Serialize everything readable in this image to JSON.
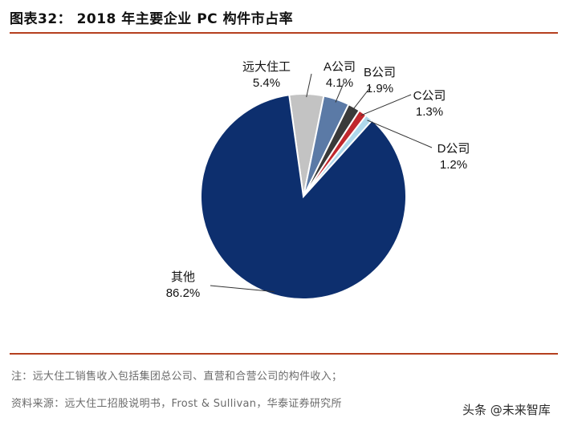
{
  "title": "图表32：  2018 年主要企业 PC 构件市占率",
  "chart_data": {
    "type": "pie",
    "title": "2018 年主要企业 PC 构件市占率",
    "slices": [
      {
        "label": "远大住工",
        "value_text": "5.4%",
        "value": 5.4,
        "color": "#c3c3c3"
      },
      {
        "label": "A公司",
        "value_text": "4.1%",
        "value": 4.1,
        "color": "#5b7aa6"
      },
      {
        "label": "B公司",
        "value_text": "1.9%",
        "value": 1.9,
        "color": "#3a3a3a"
      },
      {
        "label": "C公司",
        "value_text": "1.3%",
        "value": 1.3,
        "color": "#c0272d"
      },
      {
        "label": "D公司",
        "value_text": "1.2%",
        "value": 1.2,
        "color": "#aed8ec"
      },
      {
        "label": "其他",
        "value_text": "86.2%",
        "value": 86.2,
        "color": "#0d2f6e"
      }
    ]
  },
  "notes": {
    "note1": "注：远大住工销售收入包括集团总公司、直营和合营公司的构件收入；",
    "source": "资料来源：远大住工招股说明书，Frost & Sullivan，华泰证券研究所"
  },
  "watermark": "头条 @未来智库"
}
